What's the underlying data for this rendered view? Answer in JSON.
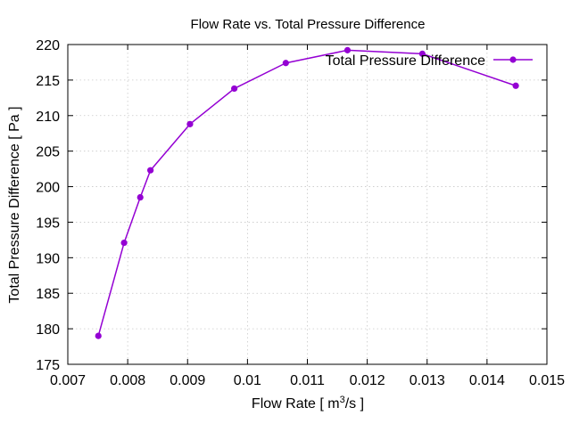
{
  "chart_data": {
    "type": "line",
    "title": "Flow Rate vs. Total Pressure Difference",
    "xlabel_prefix": "Flow Rate [ m",
    "xlabel_sup": "3",
    "xlabel_suffix": "/s ]",
    "ylabel": "Total Pressure Difference [ Pa ]",
    "xlim": [
      0.007,
      0.015
    ],
    "ylim": [
      175,
      220
    ],
    "x_ticks": [
      0.007,
      0.008,
      0.009,
      0.01,
      0.011,
      0.012,
      0.013,
      0.014,
      0.015
    ],
    "x_tick_labels": [
      "0.007",
      "0.008",
      "0.009",
      "0.01",
      "0.011",
      "0.012",
      "0.013",
      "0.014",
      "0.015"
    ],
    "y_ticks": [
      175,
      180,
      185,
      190,
      195,
      200,
      205,
      210,
      215,
      220
    ],
    "y_tick_labels": [
      "175",
      "180",
      "185",
      "190",
      "195",
      "200",
      "205",
      "210",
      "215",
      "220"
    ],
    "grid": true,
    "legend_position": "top-right",
    "series": [
      {
        "name": "Total Pressure Difference",
        "color": "#9400d3",
        "x": [
          0.00751,
          0.00794,
          0.00821,
          0.00838,
          0.00904,
          0.00978,
          0.01064,
          0.01167,
          0.01292,
          0.01448
        ],
        "values": [
          179.0,
          192.1,
          198.5,
          202.3,
          208.8,
          213.8,
          217.4,
          219.2,
          218.7,
          214.2
        ]
      }
    ]
  }
}
